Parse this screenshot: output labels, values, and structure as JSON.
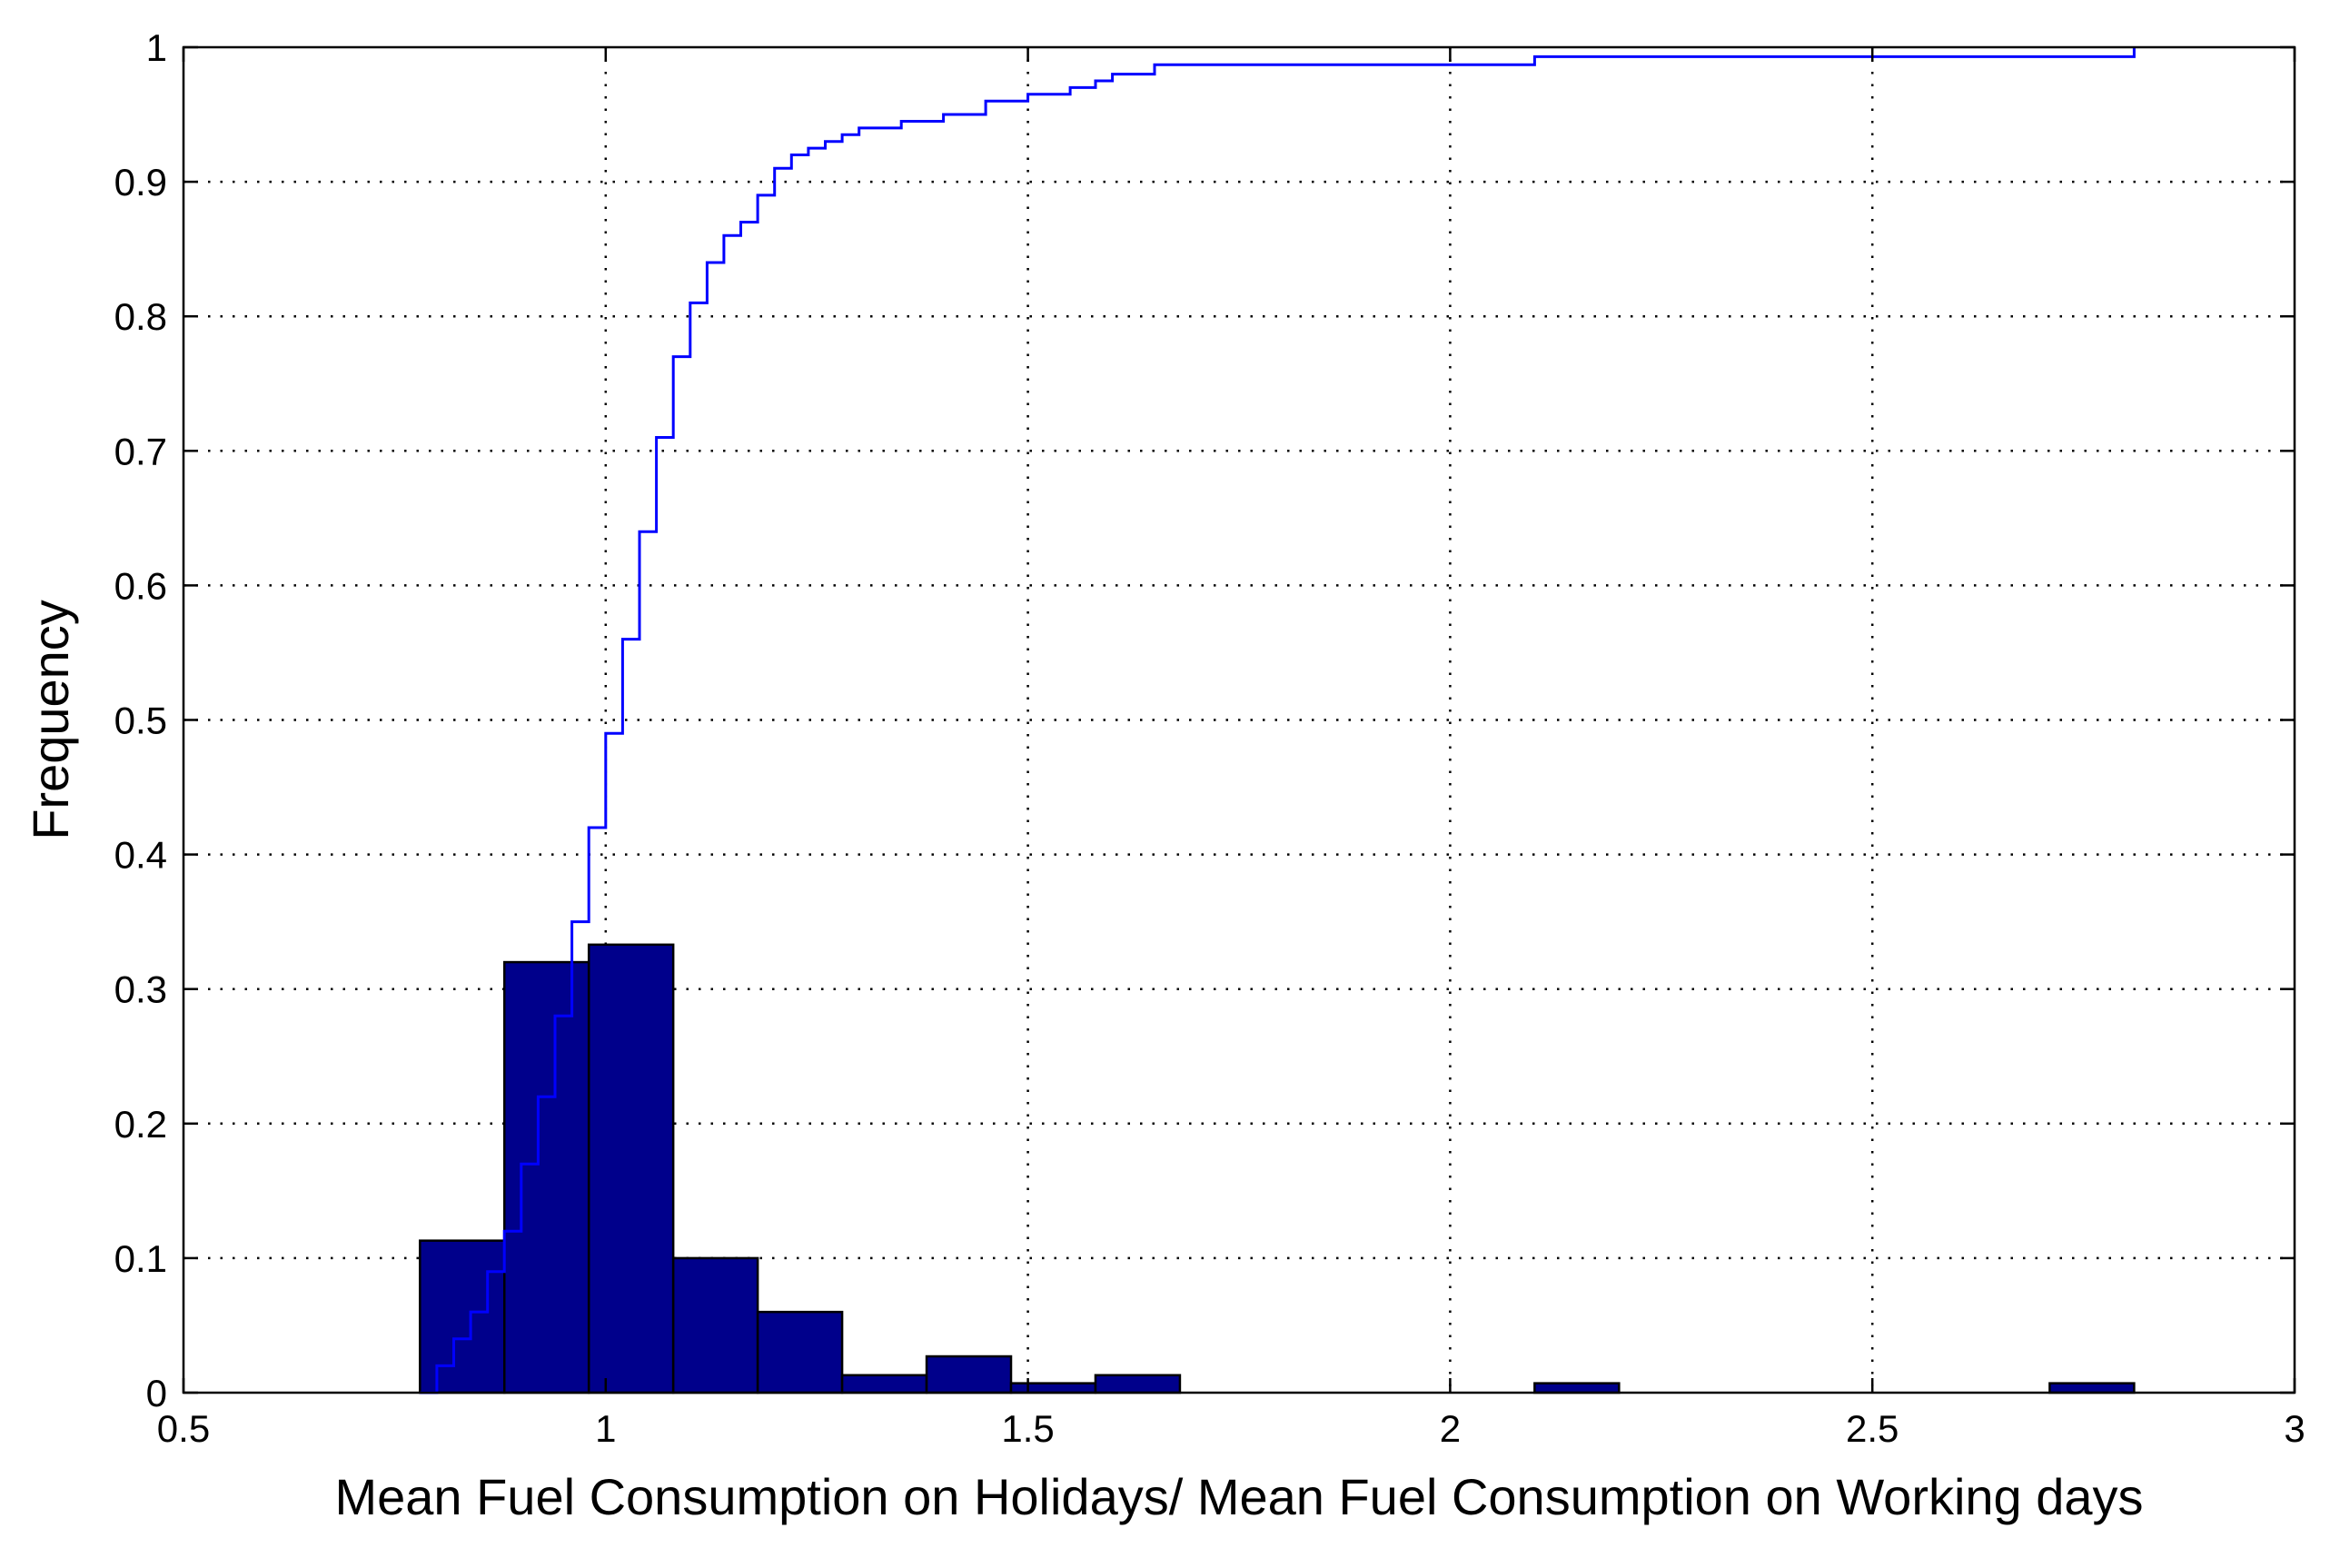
{
  "chart_data": {
    "type": "bar",
    "xlabel": "Mean Fuel Consumption on Holidays/ Mean Fuel Consumption on Working days",
    "ylabel": "Frequency",
    "xlim": [
      0.5,
      3
    ],
    "ylim": [
      0,
      1
    ],
    "x_ticks": [
      "0.5",
      "1",
      "1.5",
      "2",
      "2.5",
      "3"
    ],
    "y_ticks": [
      "0",
      "0.1",
      "0.2",
      "0.3",
      "0.4",
      "0.5",
      "0.6",
      "0.7",
      "0.8",
      "0.9",
      "1"
    ],
    "grid": true,
    "colors": {
      "bars": "#00008b",
      "cdf_line": "#0000ff"
    },
    "histogram": [
      {
        "x0": 0.78,
        "x1": 0.88,
        "value": 0.113
      },
      {
        "x0": 0.88,
        "x1": 0.98,
        "value": 0.32
      },
      {
        "x0": 0.98,
        "x1": 1.08,
        "value": 0.333
      },
      {
        "x0": 1.08,
        "x1": 1.18,
        "value": 0.1
      },
      {
        "x0": 1.18,
        "x1": 1.28,
        "value": 0.06
      },
      {
        "x0": 1.28,
        "x1": 1.38,
        "value": 0.013
      },
      {
        "x0": 1.38,
        "x1": 1.48,
        "value": 0.027
      },
      {
        "x0": 1.48,
        "x1": 1.58,
        "value": 0.007
      },
      {
        "x0": 1.58,
        "x1": 1.68,
        "value": 0.013
      },
      {
        "x0": 2.1,
        "x1": 2.2,
        "value": 0.007
      },
      {
        "x0": 2.71,
        "x1": 2.81,
        "value": 0.007
      }
    ],
    "cdf": {
      "x": [
        0.78,
        0.8,
        0.82,
        0.84,
        0.86,
        0.88,
        0.9,
        0.92,
        0.94,
        0.96,
        0.98,
        1.0,
        1.02,
        1.04,
        1.06,
        1.08,
        1.1,
        1.12,
        1.14,
        1.16,
        1.18,
        1.2,
        1.22,
        1.24,
        1.26,
        1.28,
        1.3,
        1.35,
        1.4,
        1.45,
        1.5,
        1.55,
        1.58,
        1.6,
        1.65,
        2.1,
        2.8,
        2.81
      ],
      "y": [
        0.0,
        0.02,
        0.04,
        0.06,
        0.09,
        0.12,
        0.17,
        0.22,
        0.28,
        0.35,
        0.42,
        0.49,
        0.56,
        0.64,
        0.71,
        0.77,
        0.81,
        0.84,
        0.86,
        0.87,
        0.89,
        0.91,
        0.92,
        0.925,
        0.93,
        0.935,
        0.94,
        0.945,
        0.95,
        0.96,
        0.965,
        0.97,
        0.975,
        0.98,
        0.987,
        0.993,
        0.993,
        1.0
      ]
    }
  }
}
